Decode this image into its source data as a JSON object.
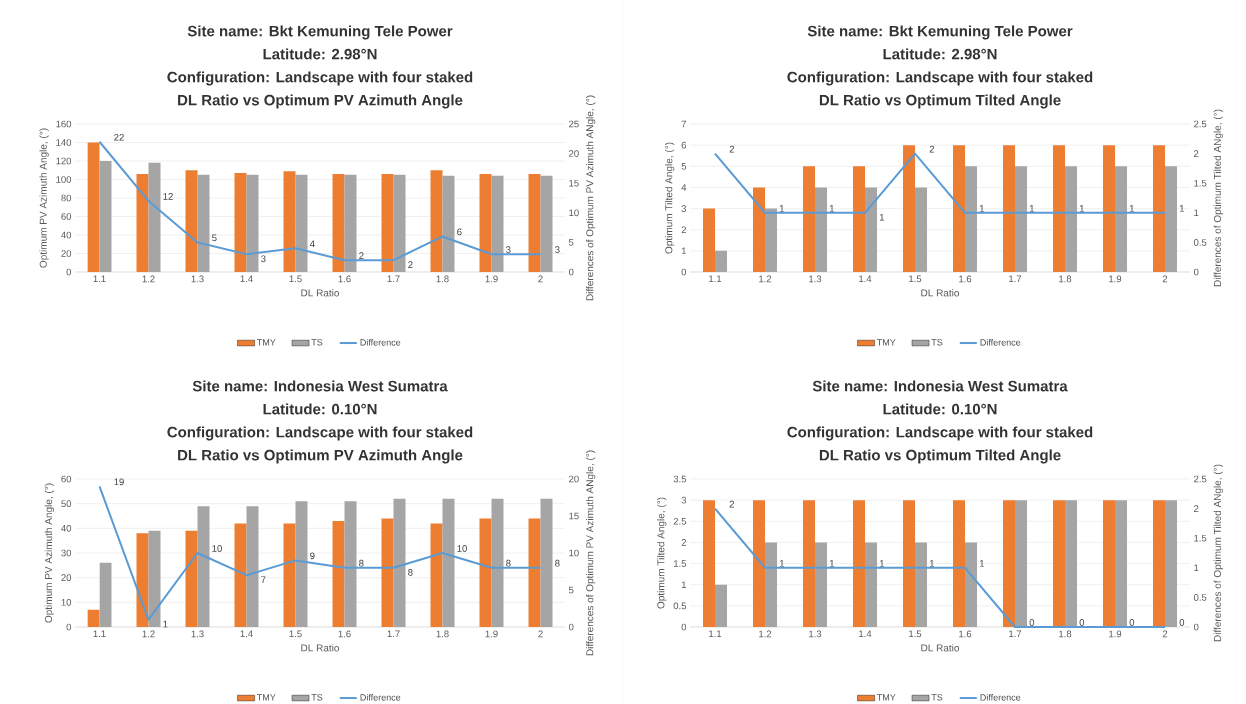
{
  "chart_data": [
    {
      "type": "bar",
      "title": "Site name: Bkt Kemuning Tele Power",
      "subtitle": "Latitude: 2.98°N",
      "annotations": [
        "Configuration: Landscape with four staked",
        "DL Ratio vs Optimum PV Azimuth Angle"
      ],
      "xlabel": "DL Ratio",
      "ylabel": "Optimum PV Azimuth Angle, (°)",
      "y2label": "Differences of Optimum PV Azimuth ANgle, (°)",
      "categories": [
        "1.1",
        "1.2",
        "1.3",
        "1.4",
        "1.5",
        "1.6",
        "1.7",
        "1.8",
        "1.9",
        "2"
      ],
      "series": [
        {
          "name": "TMY",
          "color": "#ed7d31",
          "values": [
            140,
            106,
            110,
            107,
            109,
            106,
            106,
            110,
            106,
            106
          ]
        },
        {
          "name": "TS",
          "color": "#a5a5a5",
          "values": [
            120,
            118,
            105,
            105,
            105,
            105,
            105,
            104,
            104,
            104
          ]
        },
        {
          "name": "Difference",
          "type": "line",
          "axis": "y2",
          "color": "#5b9bd5",
          "values": [
            22,
            12,
            5,
            3,
            4,
            2,
            2,
            6,
            3,
            3
          ],
          "value_labels": [
            "22",
            "12",
            "5",
            "3",
            "4",
            "2",
            "2",
            "6",
            "3",
            "3"
          ]
        }
      ],
      "ylim": [
        0,
        160
      ],
      "yticks": [
        0,
        20,
        40,
        60,
        80,
        100,
        120,
        140,
        160
      ],
      "y2lim": [
        0,
        25
      ],
      "y2ticks": [
        0,
        5,
        10,
        15,
        20,
        25
      ],
      "grid": "y",
      "legend": "bottom"
    },
    {
      "type": "bar",
      "title": "Site name: Bkt Kemuning Tele Power",
      "subtitle": "Latitude: 2.98°N",
      "annotations": [
        "Configuration: Landscape with four staked",
        "DL Ratio vs Optimum Tilted Angle"
      ],
      "xlabel": "DL Ratio",
      "ylabel": "Optimum Tilted Angle, (°)",
      "y2label": "Differences of Optimum Tilted ANgle, (°)",
      "categories": [
        "1.1",
        "1.2",
        "1.3",
        "1.4",
        "1.5",
        "1.6",
        "1.7",
        "1.8",
        "1.9",
        "2"
      ],
      "series": [
        {
          "name": "TMY",
          "color": "#ed7d31",
          "values": [
            3,
            4,
            5,
            5,
            6,
            6,
            6,
            6,
            6,
            6
          ]
        },
        {
          "name": "TS",
          "color": "#a5a5a5",
          "values": [
            1,
            3,
            4,
            4,
            4,
            5,
            5,
            5,
            5,
            5
          ]
        },
        {
          "name": "Difference",
          "type": "line",
          "axis": "y2",
          "color": "#5b9bd5",
          "values": [
            2,
            1,
            1,
            1,
            2,
            1,
            1,
            1,
            1,
            1
          ],
          "value_labels": [
            "2",
            "1",
            "1",
            "1",
            "2",
            "1",
            "1",
            "1",
            "1",
            "1"
          ]
        }
      ],
      "ylim": [
        0,
        7
      ],
      "yticks": [
        0,
        1,
        2,
        3,
        4,
        5,
        6,
        7
      ],
      "y2lim": [
        0,
        2.5
      ],
      "y2ticks": [
        0,
        0.5,
        1,
        1.5,
        2,
        2.5
      ],
      "grid": "y",
      "legend": "bottom"
    },
    {
      "type": "bar",
      "title": "Site name: Indonesia West Sumatra",
      "subtitle": "Latitude: 0.10°N",
      "annotations": [
        "Configuration: Landscape with four staked",
        "DL Ratio vs Optimum PV Azimuth Angle"
      ],
      "xlabel": "DL Ratio",
      "ylabel": "Optimum PV Azimuth Angle, (°)",
      "y2label": "Differences of Optimum PV Azimuth ANgle, (°)",
      "categories": [
        "1.1",
        "1.2",
        "1.3",
        "1.4",
        "1.5",
        "1.6",
        "1.7",
        "1.8",
        "1.9",
        "2"
      ],
      "series": [
        {
          "name": "TMY",
          "color": "#ed7d31",
          "values": [
            7,
            38,
            39,
            42,
            42,
            43,
            44,
            42,
            44,
            44
          ]
        },
        {
          "name": "TS",
          "color": "#a5a5a5",
          "values": [
            26,
            39,
            49,
            49,
            51,
            51,
            52,
            52,
            52,
            52
          ]
        },
        {
          "name": "Difference",
          "type": "line",
          "axis": "y2",
          "color": "#5b9bd5",
          "values": [
            19,
            1,
            10,
            7,
            9,
            8,
            8,
            10,
            8,
            8
          ],
          "value_labels": [
            "19",
            "1",
            "10",
            "7",
            "9",
            "8",
            "8",
            "10",
            "8",
            "8"
          ]
        }
      ],
      "ylim": [
        0,
        60
      ],
      "yticks": [
        0,
        10,
        20,
        30,
        40,
        50,
        60
      ],
      "y2lim": [
        0,
        20
      ],
      "y2ticks": [
        0,
        5,
        10,
        15,
        20
      ],
      "grid": "y",
      "legend": "bottom"
    },
    {
      "type": "bar",
      "title": "Site name: Indonesia West Sumatra",
      "subtitle": "Latitude: 0.10°N",
      "annotations": [
        "Configuration: Landscape with four staked",
        "DL Ratio vs Optimum Tilted Angle"
      ],
      "xlabel": "DL Ratio",
      "ylabel": "Optimum Tilted Angle, (°)",
      "y2label": "Differences of Optimum Tilted ANgle, (°)",
      "categories": [
        "1.1",
        "1.2",
        "1.3",
        "1.4",
        "1.5",
        "1.6",
        "1.7",
        "1.8",
        "1.9",
        "2"
      ],
      "series": [
        {
          "name": "TMY",
          "color": "#ed7d31",
          "values": [
            3,
            3,
            3,
            3,
            3,
            3,
            3,
            3,
            3,
            3
          ]
        },
        {
          "name": "TS",
          "color": "#a5a5a5",
          "values": [
            1,
            2,
            2,
            2,
            2,
            2,
            3,
            3,
            3,
            3
          ]
        },
        {
          "name": "Difference",
          "type": "line",
          "axis": "y2",
          "color": "#5b9bd5",
          "values": [
            2,
            1,
            1,
            1,
            1,
            1,
            0,
            0,
            0,
            0
          ],
          "value_labels": [
            "2",
            "1",
            "1",
            "1",
            "1",
            "1",
            "0",
            "0",
            "0",
            "0"
          ]
        }
      ],
      "ylim": [
        0,
        3.5
      ],
      "yticks": [
        0,
        0.5,
        1,
        1.5,
        2,
        2.5,
        3,
        3.5
      ],
      "y2lim": [
        0,
        2.5
      ],
      "y2ticks": [
        0,
        0.5,
        1,
        1.5,
        2,
        2.5
      ],
      "grid": "y",
      "legend": "bottom"
    }
  ]
}
